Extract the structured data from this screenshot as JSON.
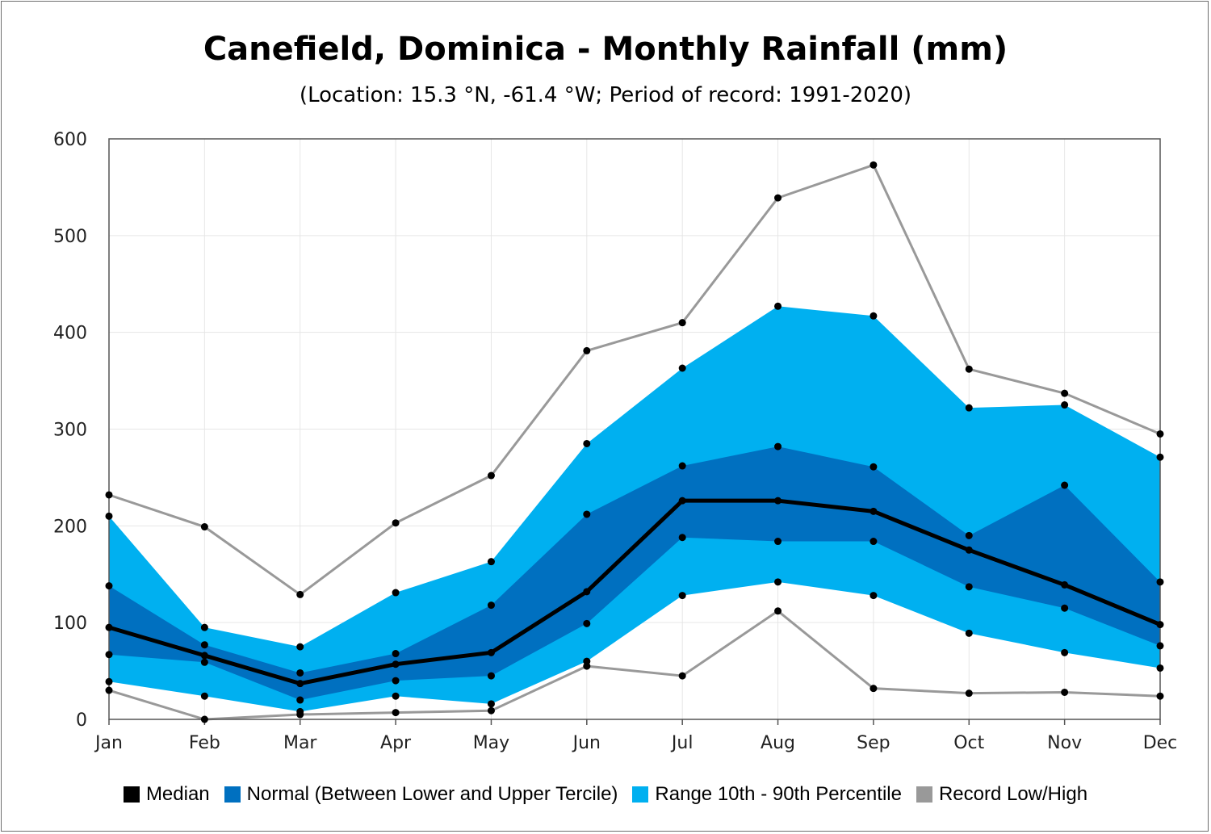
{
  "chart_data": {
    "type": "area",
    "title": "Canefield, Dominica - Monthly Rainfall (mm)",
    "subtitle": "(Location: 15.3 °N, -61.4 °W; Period of record: 1991-2020)",
    "xlabel": "",
    "ylabel": "",
    "categories": [
      "Jan",
      "Feb",
      "Mar",
      "Apr",
      "May",
      "Jun",
      "Jul",
      "Aug",
      "Sep",
      "Oct",
      "Nov",
      "Dec"
    ],
    "ylim": [
      0,
      600
    ],
    "yticks": [
      "0",
      "100",
      "200",
      "300",
      "400",
      "500",
      "600"
    ],
    "grid": true,
    "legend_position": "bottom",
    "series": [
      {
        "name": "Median",
        "color": "#000000",
        "values": [
          95,
          66,
          37,
          57,
          69,
          132,
          226,
          226,
          215,
          175,
          139,
          98
        ]
      },
      {
        "name": "Normal (Between Lower and Upper Tercile)",
        "color": "#0070c0",
        "lower": [
          67,
          59,
          20,
          40,
          45,
          99,
          188,
          184,
          184,
          137,
          115,
          76
        ],
        "upper": [
          138,
          77,
          48,
          68,
          118,
          212,
          262,
          282,
          261,
          190,
          242,
          142
        ]
      },
      {
        "name": "Range 10th - 90th Percentile",
        "color": "#00b0f0",
        "lower": [
          39,
          24,
          8,
          24,
          16,
          60,
          128,
          142,
          128,
          89,
          69,
          53
        ],
        "upper": [
          210,
          95,
          75,
          131,
          163,
          285,
          363,
          427,
          417,
          322,
          325,
          271
        ]
      },
      {
        "name": "Record Low/High",
        "color": "#999999",
        "lower": [
          30,
          0,
          5,
          7,
          9,
          55,
          45,
          112,
          32,
          27,
          28,
          24
        ],
        "upper": [
          232,
          199,
          129,
          203,
          252,
          381,
          410,
          539,
          573,
          362,
          337,
          295
        ]
      }
    ]
  }
}
